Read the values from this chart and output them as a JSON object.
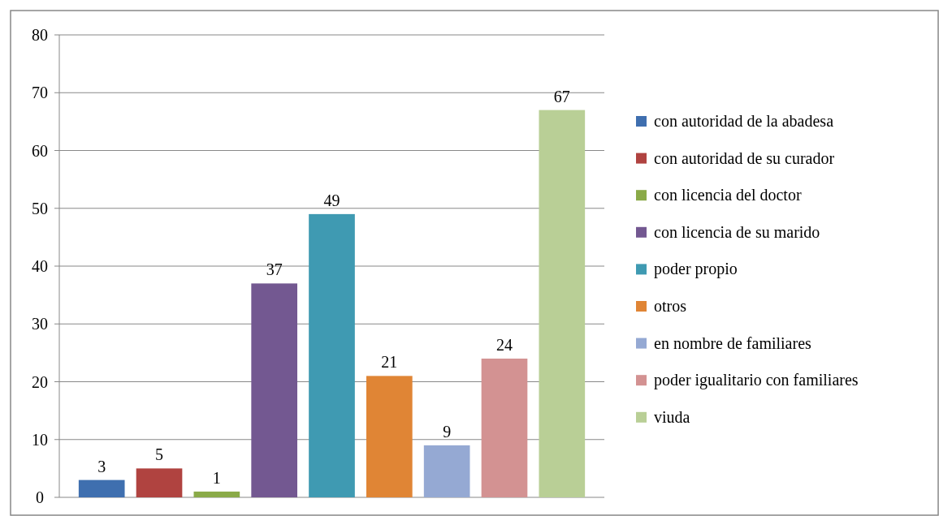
{
  "chart_data": {
    "type": "bar",
    "categories": [
      null
    ],
    "ylim": [
      0,
      80
    ],
    "yticks": [
      0,
      10,
      20,
      30,
      40,
      50,
      60,
      70,
      80
    ],
    "grid": "y",
    "legend": "right",
    "data_labels": true,
    "series": [
      {
        "name": "con autoridad de la abadesa",
        "color": "#3f6faf",
        "values": [
          3
        ]
      },
      {
        "name": "con autoridad de su curador",
        "color": "#b04340",
        "values": [
          5
        ]
      },
      {
        "name": "con licencia del doctor",
        "color": "#8aaa48",
        "values": [
          1
        ]
      },
      {
        "name": "con licencia de su marido",
        "color": "#735891",
        "values": [
          37
        ]
      },
      {
        "name": "poder propio",
        "color": "#3f9ab2",
        "values": [
          49
        ]
      },
      {
        "name": "otros",
        "color": "#e08535",
        "values": [
          21
        ]
      },
      {
        "name": "en nombre de familiares",
        "color": "#95a9d3",
        "values": [
          9
        ]
      },
      {
        "name": "poder igualitario con familiares",
        "color": "#d39292",
        "values": [
          24
        ]
      },
      {
        "name": "viuda",
        "color": "#b9cf96",
        "values": [
          67
        ]
      }
    ]
  }
}
